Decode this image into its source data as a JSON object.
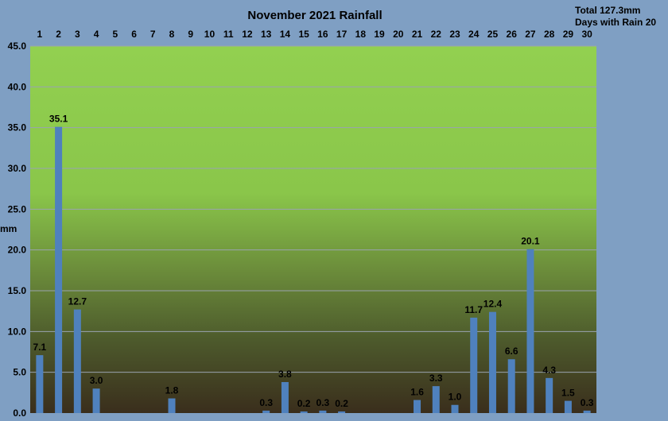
{
  "chart_data": {
    "type": "bar",
    "title": "November 2021 Rainfall",
    "summary": {
      "total": "Total 127.3mm",
      "days_with_rain": "Days with Rain 20"
    },
    "ylabel": "mm",
    "xlabel": "",
    "ylim": [
      0,
      45
    ],
    "y_ticks": [
      "0.0",
      "5.0",
      "10.0",
      "15.0",
      "20.0",
      "25.0",
      "30.0",
      "35.0",
      "40.0",
      "45.0"
    ],
    "grid": true,
    "x_axis_position": "top",
    "categories": [
      "1",
      "2",
      "3",
      "4",
      "5",
      "6",
      "7",
      "8",
      "9",
      "10",
      "11",
      "12",
      "13",
      "14",
      "15",
      "16",
      "17",
      "18",
      "19",
      "20",
      "21",
      "22",
      "23",
      "24",
      "25",
      "26",
      "27",
      "28",
      "29",
      "30"
    ],
    "values": [
      7.1,
      35.1,
      12.7,
      3.0,
      0,
      0,
      0,
      1.8,
      0,
      0,
      0,
      0,
      0.3,
      3.8,
      0.2,
      0.3,
      0.2,
      0,
      0,
      0,
      1.6,
      3.3,
      1.0,
      11.7,
      12.4,
      6.6,
      20.1,
      4.3,
      1.5,
      0.3
    ],
    "data_labels": [
      "7.1",
      "35.1",
      "12.7",
      "3.0",
      "",
      "",
      "",
      "1.8",
      "",
      "",
      "",
      "",
      "0.3",
      "3.8",
      "0.2",
      "0.3",
      "0.2",
      "",
      "",
      "",
      "1.6",
      "3.3",
      "1.0",
      "11.7",
      "12.4",
      "6.6",
      "20.1",
      "4.3",
      "1.5",
      "0.3"
    ],
    "colors": {
      "bar": "#4f81bd",
      "background": "#7f9fc3",
      "plot_top": "#92d050",
      "plot_bottom": "#3a2e1c",
      "grid": "#9aa3b0"
    }
  }
}
